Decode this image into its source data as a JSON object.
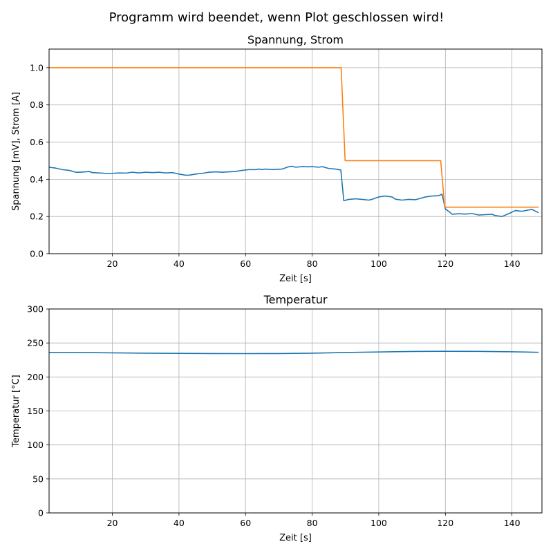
{
  "figure": {
    "suptitle": "Programm wird beendet, wenn Plot geschlossen wird!"
  },
  "colors": {
    "series_blue": "#1f77b4",
    "series_orange": "#ff7f0e",
    "grid": "#b0b0b0",
    "frame": "#000000"
  },
  "chart_data": [
    {
      "type": "line",
      "title": "Spannung, Strom",
      "xlabel": "Zeit [s]",
      "ylabel": "Spannung [mV], Strom [A]",
      "xlim": [
        1,
        149
      ],
      "ylim": [
        0,
        1.1
      ],
      "xticks": [
        "20",
        "40",
        "60",
        "80",
        "100",
        "120",
        "140"
      ],
      "xtick_values": [
        20,
        40,
        60,
        80,
        100,
        120,
        140
      ],
      "yticks": [
        "0.0",
        "0.2",
        "0.4",
        "0.6",
        "0.8",
        "1.0"
      ],
      "ytick_values": [
        0,
        0.2,
        0.4,
        0.6,
        0.8,
        1.0
      ],
      "grid": true,
      "series": [
        {
          "color": "#1f77b4",
          "x": [
            1,
            3,
            5,
            7,
            9,
            10,
            12,
            13,
            14,
            16,
            18,
            20,
            22,
            24,
            26,
            28,
            30,
            32,
            34,
            36,
            38,
            40,
            42,
            43,
            45,
            47,
            49,
            51,
            53,
            55,
            57,
            59,
            61,
            63,
            64,
            65,
            66,
            68,
            69,
            71,
            73,
            74,
            75,
            77,
            79,
            80,
            82,
            83,
            85,
            87,
            88.6,
            89.5,
            91,
            93,
            95,
            97,
            98,
            100,
            102,
            104,
            105,
            107,
            109,
            111,
            112,
            114,
            116,
            118,
            119,
            120,
            121,
            122,
            124,
            126,
            128,
            130,
            132,
            134,
            135,
            137,
            139,
            141,
            143,
            145,
            146,
            148
          ],
          "y": [
            0.465,
            0.46,
            0.452,
            0.448,
            0.438,
            0.438,
            0.44,
            0.442,
            0.436,
            0.434,
            0.432,
            0.432,
            0.434,
            0.433,
            0.438,
            0.434,
            0.438,
            0.436,
            0.438,
            0.434,
            0.436,
            0.428,
            0.422,
            0.422,
            0.428,
            0.432,
            0.438,
            0.44,
            0.438,
            0.44,
            0.442,
            0.448,
            0.452,
            0.452,
            0.455,
            0.452,
            0.455,
            0.452,
            0.453,
            0.455,
            0.468,
            0.47,
            0.465,
            0.468,
            0.467,
            0.468,
            0.465,
            0.468,
            0.458,
            0.455,
            0.45,
            0.285,
            0.292,
            0.295,
            0.292,
            0.288,
            0.292,
            0.305,
            0.31,
            0.305,
            0.293,
            0.288,
            0.292,
            0.29,
            0.295,
            0.305,
            0.31,
            0.312,
            0.32,
            0.24,
            0.228,
            0.212,
            0.215,
            0.213,
            0.216,
            0.208,
            0.21,
            0.212,
            0.205,
            0.2,
            0.215,
            0.232,
            0.228,
            0.235,
            0.238,
            0.22
          ]
        },
        {
          "color": "#ff7f0e",
          "x": [
            1,
            88.7,
            89.9,
            118.6,
            119.8,
            148
          ],
          "y": [
            1.0,
            1.0,
            0.5,
            0.5,
            0.25,
            0.25
          ]
        }
      ]
    },
    {
      "type": "line",
      "title": "Temperatur",
      "xlabel": "Zeit [s]",
      "ylabel": "Temperatur [°C]",
      "xlim": [
        1,
        149
      ],
      "ylim": [
        0,
        300
      ],
      "xticks": [
        "20",
        "40",
        "60",
        "80",
        "100",
        "120",
        "140"
      ],
      "xtick_values": [
        20,
        40,
        60,
        80,
        100,
        120,
        140
      ],
      "yticks": [
        "0",
        "50",
        "100",
        "150",
        "200",
        "250",
        "300"
      ],
      "ytick_values": [
        0,
        50,
        100,
        150,
        200,
        250,
        300
      ],
      "grid": true,
      "series": [
        {
          "color": "#1f77b4",
          "x": [
            1,
            10,
            20,
            30,
            40,
            50,
            60,
            70,
            80,
            90,
            100,
            110,
            120,
            130,
            140,
            148
          ],
          "y": [
            236,
            236,
            235.5,
            235,
            234.7,
            234.5,
            234.4,
            234.5,
            235,
            236,
            236.8,
            237.5,
            237.8,
            237.6,
            237,
            236.3
          ]
        }
      ]
    }
  ]
}
